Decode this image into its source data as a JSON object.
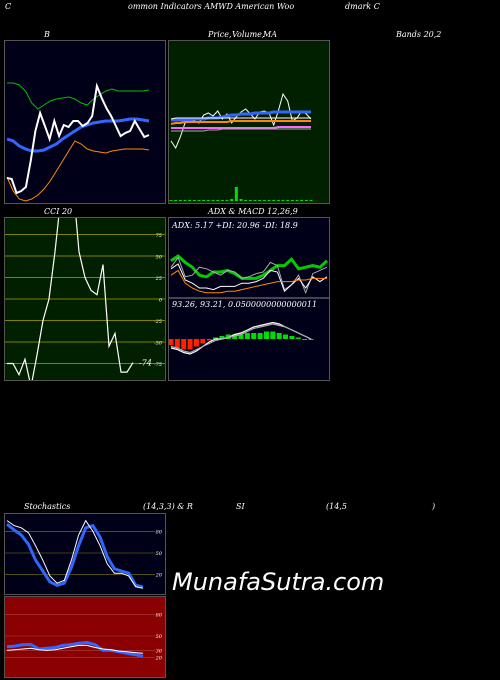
{
  "header": {
    "c1": "C",
    "c2": "ommon  Indicators AMWD American  Woo",
    "c3": "dmark C"
  },
  "titles": {
    "b": "B",
    "price_a": "Price,",
    "price_b": "Volume,",
    "price_c": "MA",
    "bands": "Bands 20,2",
    "cci": "CCI 20",
    "adx_macd": "ADX  & MACD 12,26,9",
    "stoch": "Stochastics",
    "stoch_params": "(14,3,3) & R",
    "rsi": "SI",
    "rsi_params": "(14,5",
    "paren": ")"
  },
  "adx_label": "ADX: 5.17  +DI: 20.96  -DI: 18.9",
  "macd_label": "93.26,   93.21,   0.0500000000000011",
  "cci_value_label": "-74",
  "watermark": "MunafaSutra.com",
  "colors": {
    "bg": "#000000",
    "panel_dark": "#000018",
    "price_panel": "#002000",
    "rsi_panel": "#8b0000",
    "white": "#ffffff",
    "green": "#00dd00",
    "blue": "#3070ff",
    "orange": "#ff8800",
    "olive": "#808000",
    "red": "#ff2200"
  },
  "chart_data": [
    {
      "type": "line",
      "name": "Bollinger Bands",
      "series": [
        {
          "color": "#00c000",
          "values": [
            82,
            82,
            84,
            90,
            102,
            108,
            104,
            100,
            98,
            97,
            96,
            98,
            102,
            104,
            98,
            94,
            90,
            88,
            90,
            90,
            90,
            90,
            90,
            89
          ]
        },
        {
          "color": "#3366ff",
          "values": [
            138,
            140,
            145,
            148,
            150,
            150,
            149,
            146,
            143,
            138,
            134,
            130,
            126,
            124,
            122,
            121,
            120,
            120,
            120,
            119,
            118,
            118,
            119,
            120
          ]
        },
        {
          "color": "#ff8800",
          "values": [
            176,
            190,
            198,
            200,
            198,
            194,
            188,
            180,
            170,
            160,
            150,
            140,
            143,
            148,
            150,
            151,
            152,
            150,
            149,
            148,
            148,
            148,
            148,
            149
          ]
        },
        {
          "color": "#ffffff",
          "values": [
            177,
            178,
            192,
            190,
            186,
            160,
            130,
            112,
            125,
            138,
            120,
            135,
            124,
            126,
            120,
            120,
            125,
            122,
            115,
            85,
            97,
            107,
            115,
            125,
            135,
            132,
            130,
            120,
            128,
            136,
            134
          ]
        }
      ]
    },
    {
      "type": "line",
      "name": "Price Volume MA",
      "series": [
        {
          "color": "#ffffff",
          "values": [
            140,
            147,
            136,
            122,
            120,
            120,
            122,
            114,
            112,
            115,
            110,
            118,
            113,
            122,
            116,
            111,
            108,
            113,
            118,
            111,
            110,
            112,
            124,
            110,
            93,
            100,
            120,
            117,
            110,
            113,
            118
          ]
        },
        {
          "color": "#3366ff",
          "values": [
            119,
            119,
            119,
            119,
            119,
            118,
            118,
            118,
            117,
            117,
            117,
            116,
            115,
            114,
            114,
            113,
            113,
            113,
            112,
            112,
            112,
            112,
            111,
            111,
            111,
            111,
            111,
            111,
            111,
            111,
            111
          ]
        },
        {
          "color": "#ff8800",
          "values": [
            123,
            122,
            122,
            121,
            121,
            121,
            121,
            121,
            121,
            121,
            121,
            121,
            121,
            120,
            120,
            120,
            120,
            120,
            120,
            120,
            120,
            120,
            120,
            120,
            120,
            120,
            120,
            120,
            120,
            120,
            120
          ]
        },
        {
          "color": "#ffffff",
          "values": [
            118,
            117,
            117,
            117,
            117,
            117,
            117,
            117,
            117,
            117,
            117,
            117,
            117,
            117,
            117,
            117,
            117,
            117,
            117,
            117,
            117,
            117,
            117,
            117,
            117,
            117,
            117,
            117,
            117,
            117,
            117
          ]
        },
        {
          "color": "#ff66ff",
          "values": [
            127,
            127,
            127,
            127,
            127,
            127,
            127,
            127,
            127,
            127,
            127,
            127,
            127,
            127,
            127,
            127,
            127,
            127,
            127,
            127,
            127,
            127,
            127,
            126,
            126,
            126,
            126,
            126,
            126,
            126,
            126
          ]
        },
        {
          "color": "#aaaaaa",
          "values": [
            130,
            130,
            130,
            130,
            130,
            130,
            130,
            130,
            129,
            129,
            129,
            128,
            128,
            128,
            128,
            128,
            128,
            128,
            128,
            128,
            128,
            128,
            128,
            128,
            128,
            128,
            128,
            128,
            128,
            128,
            128
          ]
        }
      ],
      "volume": [
        1,
        1,
        1,
        1,
        1,
        1,
        1,
        1,
        1,
        1,
        1,
        1,
        1,
        2,
        14,
        2,
        1,
        1,
        1,
        1,
        1,
        1,
        1,
        1,
        1,
        1,
        1,
        1,
        1,
        1,
        1
      ]
    },
    {
      "type": "line",
      "name": "CCI",
      "ylim": [
        -175,
        175
      ],
      "yticks": [
        175,
        150,
        125,
        100,
        75,
        50,
        25,
        0,
        -25,
        -50,
        -75,
        -100,
        -125,
        -150,
        -175
      ],
      "series": [
        {
          "color": "#ffffff",
          "values": [
            -75,
            -75,
            -88,
            -70,
            -102,
            -65,
            -25,
            0,
            55,
            120,
            175,
            135,
            55,
            25,
            10,
            5,
            40,
            -55,
            -40,
            -85,
            -85,
            -74
          ]
        }
      ]
    },
    {
      "type": "line",
      "name": "ADX",
      "series": [
        {
          "color": "#00cc00",
          "values": [
            12,
            15,
            11,
            8,
            3,
            2,
            5,
            5,
            6,
            4,
            1,
            1,
            1,
            3,
            6,
            9,
            9,
            13,
            7,
            8,
            9,
            8,
            12
          ]
        },
        {
          "color": "#aaaaaa",
          "values": [
            8,
            14,
            2,
            3,
            8,
            7,
            5,
            3,
            6,
            5,
            1,
            2,
            4,
            5,
            11,
            9,
            -6,
            -3,
            3,
            -8,
            4,
            6,
            8
          ]
        },
        {
          "color": "#ffffff",
          "values": [
            7,
            10,
            0,
            -2,
            -5,
            -5,
            -6,
            -4,
            -4,
            -4,
            -2,
            -2,
            -1,
            1,
            6,
            5,
            -7,
            -3,
            1,
            -5,
            2,
            -1,
            2
          ]
        },
        {
          "color": "#ff8800",
          "values": [
            3,
            6,
            -2,
            -5,
            -7,
            -8,
            -8,
            -8,
            -7,
            -7,
            -6,
            -5,
            -4,
            -3,
            -2,
            -1,
            -1,
            -1,
            0,
            0,
            1,
            1,
            1
          ]
        }
      ]
    },
    {
      "type": "line",
      "name": "MACD",
      "series": [
        {
          "color": "#ffffff",
          "values": [
            -6,
            -7,
            -9,
            -10,
            -8,
            -5,
            -2,
            0,
            0,
            1,
            3,
            4,
            6,
            8,
            9,
            10,
            11,
            10,
            8,
            6,
            4,
            2,
            0
          ]
        },
        {
          "color": "#aaaaaa",
          "values": [
            -5,
            -6,
            -8,
            -9,
            -7,
            -5,
            -3,
            -1,
            0,
            1,
            2,
            3,
            5,
            7,
            8,
            9,
            10,
            9,
            8,
            6,
            4,
            2,
            0
          ]
        }
      ],
      "histogram": [
        -4,
        -6,
        -7,
        -7,
        -5,
        -3,
        -1,
        1,
        2,
        3,
        3,
        3,
        4,
        4,
        4,
        5,
        5,
        4,
        3,
        2,
        1,
        0,
        0
      ]
    },
    {
      "type": "line",
      "name": "Stochastics",
      "ylim": [
        0,
        100
      ],
      "yticks": [
        80,
        50,
        20
      ],
      "series": [
        {
          "color": "#3366ff",
          "values": [
            90,
            82,
            75,
            62,
            40,
            25,
            10,
            5,
            8,
            30,
            60,
            85,
            88,
            72,
            45,
            28,
            25,
            22,
            5,
            3
          ]
        },
        {
          "color": "#ffffff",
          "values": [
            95,
            88,
            85,
            78,
            60,
            40,
            18,
            8,
            12,
            40,
            75,
            95,
            80,
            60,
            35,
            22,
            22,
            18,
            3,
            1
          ]
        }
      ]
    },
    {
      "type": "line",
      "name": "RSI",
      "ylim": [
        0,
        100
      ],
      "yticks": [
        80,
        50,
        30,
        20
      ],
      "series": [
        {
          "color": "#3366ff",
          "values": [
            35,
            36,
            38,
            38,
            32,
            33,
            34,
            37,
            38,
            40,
            41,
            38,
            30,
            30,
            28,
            26,
            24,
            22
          ]
        },
        {
          "color": "#ffffff",
          "values": [
            30,
            31,
            32,
            33,
            31,
            30,
            31,
            33,
            35,
            37,
            37,
            34,
            32,
            31,
            29,
            28,
            27,
            26
          ]
        }
      ]
    }
  ]
}
